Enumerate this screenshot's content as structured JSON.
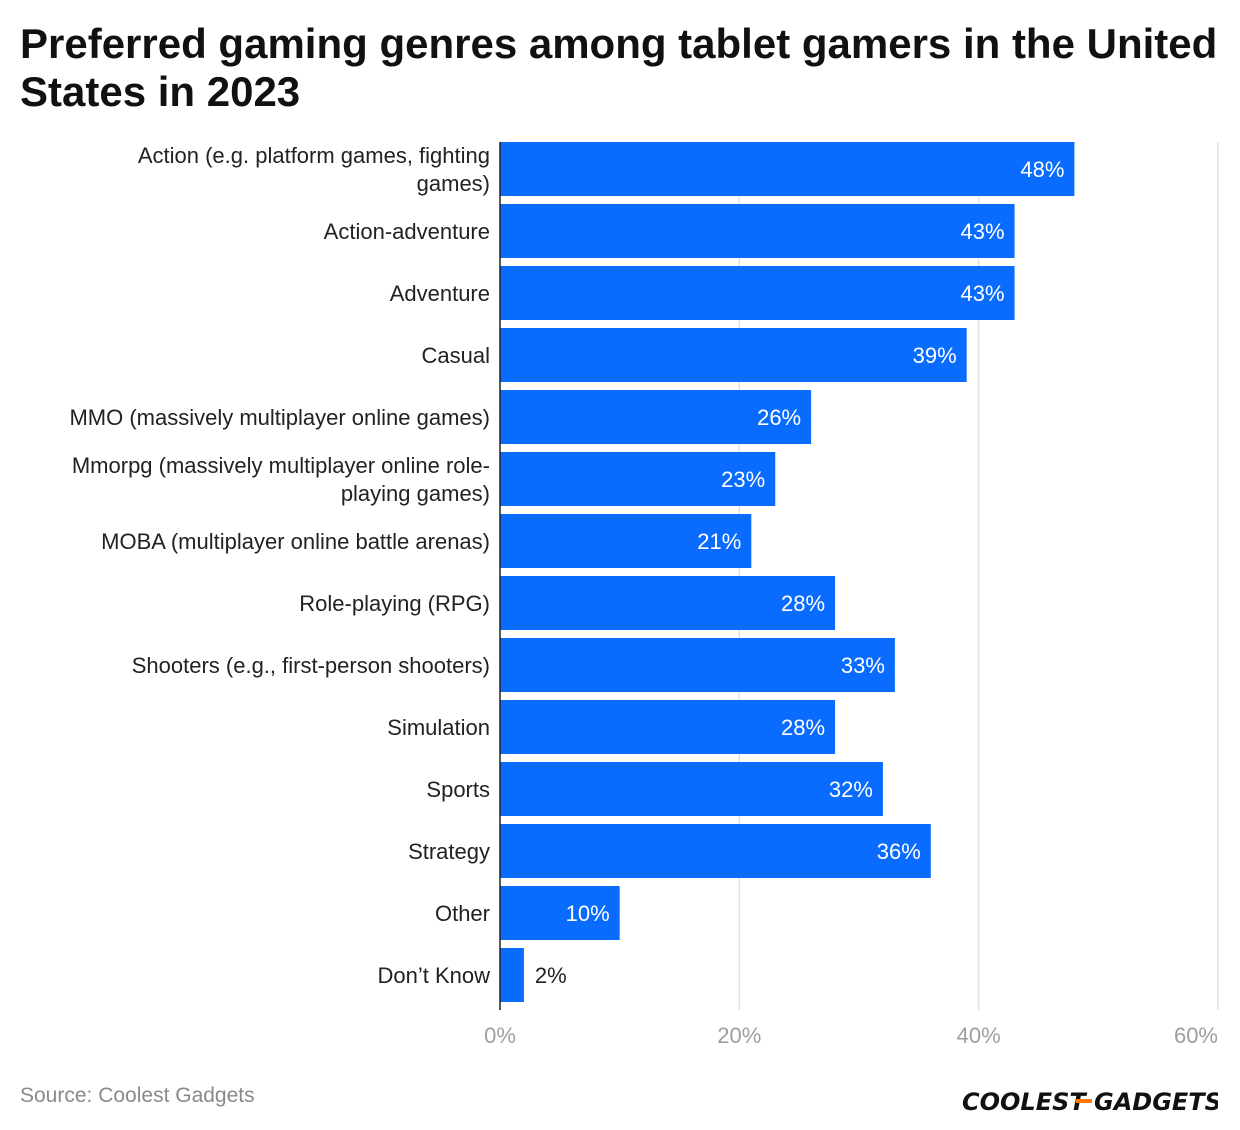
{
  "source": "Source: Coolest Gadgets",
  "brand": {
    "part1": "COOLEST",
    "part2": "GADGETS",
    "accent": "#ff7a00"
  },
  "chart_data": {
    "type": "bar",
    "orientation": "horizontal",
    "title": "Preferred gaming genres among tablet gamers in the United States in 2023",
    "xlabel": "",
    "ylabel": "",
    "xlim": [
      0,
      60
    ],
    "ticks": [
      "0%",
      "20%",
      "40%",
      "60%"
    ],
    "tick_values": [
      0,
      20,
      40,
      60
    ],
    "grid": true,
    "bar_color": "#0a6cff",
    "categories": [
      [
        "Action (e.g. platform games, fighting",
        "games)"
      ],
      [
        "Action-adventure"
      ],
      [
        "Adventure"
      ],
      [
        "Casual"
      ],
      [
        "MMO (massively multiplayer online games)"
      ],
      [
        "Mmorpg (massively multiplayer online role-",
        "playing games)"
      ],
      [
        "MOBA (multiplayer online battle arenas)"
      ],
      [
        "Role-playing (RPG)"
      ],
      [
        "Shooters (e.g., first-person shooters)"
      ],
      [
        "Simulation"
      ],
      [
        "Sports"
      ],
      [
        "Strategy"
      ],
      [
        "Other"
      ],
      [
        "Don’t Know"
      ]
    ],
    "values": [
      48,
      43,
      43,
      39,
      26,
      23,
      21,
      28,
      33,
      28,
      32,
      36,
      10,
      2
    ],
    "value_labels": [
      "48%",
      "43%",
      "43%",
      "39%",
      "26%",
      "23%",
      "21%",
      "28%",
      "33%",
      "28%",
      "32%",
      "36%",
      "10%",
      "2%"
    ]
  }
}
